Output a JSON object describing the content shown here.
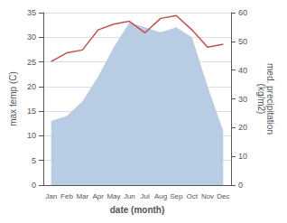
{
  "chart_data": {
    "type": "line",
    "categories": [
      "Jan",
      "Feb",
      "Mar",
      "Apr",
      "May",
      "Jun",
      "Jul",
      "Aug",
      "Sep",
      "Oct",
      "Nov",
      "Dec"
    ],
    "series": [
      {
        "type": "area",
        "color": "#b8cce4",
        "values": [
          13,
          14,
          17,
          22,
          28,
          33,
          32,
          31,
          32,
          30,
          20,
          11
        ]
      },
      {
        "type": "line",
        "color": "#c0504d",
        "axis": "y2",
        "values": [
          43,
          46,
          47,
          54,
          56,
          57,
          53,
          58,
          59,
          54,
          48,
          49
        ]
      }
    ],
    "xlabel": "date (month)",
    "ylabel": "max temp (C)",
    "y2label": "med. precipitation\n(kg/m2)",
    "ylim": [
      0,
      35
    ],
    "yticks": [
      0,
      5,
      10,
      15,
      20,
      25,
      30,
      35
    ],
    "y2lim": [
      0,
      60
    ],
    "y2ticks": [
      0,
      10,
      20,
      30,
      40,
      50,
      60
    ],
    "grid": true
  }
}
